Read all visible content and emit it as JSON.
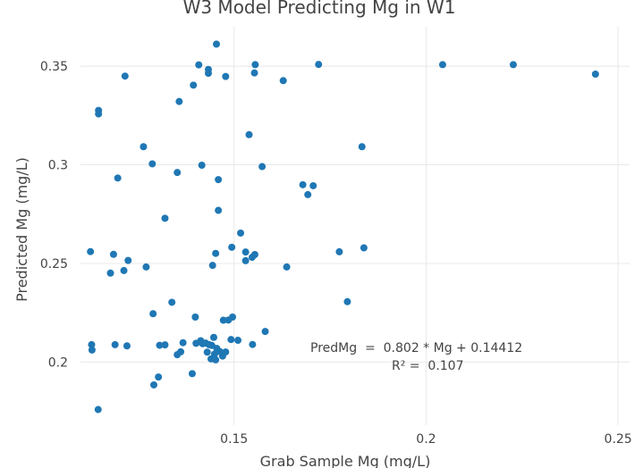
{
  "chart_data": {
    "type": "scatter",
    "title": "W3 Model Predicting Mg in W1",
    "xlabel": "Grab Sample Mg (mg/L)",
    "ylabel": "Predicted Mg (mg/L)",
    "xlim": [
      0.11,
      0.253
    ],
    "ylim": [
      0.168,
      0.37
    ],
    "xticks": [
      0.15,
      0.2,
      0.25
    ],
    "xtick_labels": [
      "0.15",
      "0.2",
      "0.25"
    ],
    "yticks": [
      0.2,
      0.25,
      0.3,
      0.35
    ],
    "ytick_labels": [
      "0.2",
      "0.25",
      "0.3",
      "0.35"
    ],
    "grid": true,
    "legend": "none",
    "colors": {
      "marker": "#1f77b4",
      "grid": "#e8e8e8",
      "text": "#444444"
    },
    "annotation": {
      "equation": "PredMg  =  0.802 * Mg + 0.14412",
      "r2": "R² =  0.107"
    },
    "points": [
      [
        0.1454,
        0.3612
      ],
      [
        0.1408,
        0.3507
      ],
      [
        0.1555,
        0.3508
      ],
      [
        0.172,
        0.3509
      ],
      [
        0.2043,
        0.3508
      ],
      [
        0.2227,
        0.3508
      ],
      [
        0.2441,
        0.346
      ],
      [
        0.1433,
        0.3484
      ],
      [
        0.1433,
        0.3464
      ],
      [
        0.1553,
        0.3466
      ],
      [
        0.1478,
        0.3448
      ],
      [
        0.1628,
        0.3427
      ],
      [
        0.1216,
        0.345
      ],
      [
        0.1394,
        0.3404
      ],
      [
        0.1357,
        0.3321
      ],
      [
        0.1147,
        0.3276
      ],
      [
        0.1147,
        0.3258
      ],
      [
        0.1539,
        0.3153
      ],
      [
        0.1264,
        0.3092
      ],
      [
        0.1833,
        0.3092
      ],
      [
        0.1287,
        0.3005
      ],
      [
        0.1416,
        0.2998
      ],
      [
        0.1573,
        0.2991
      ],
      [
        0.1352,
        0.2961
      ],
      [
        0.1197,
        0.2933
      ],
      [
        0.1459,
        0.2925
      ],
      [
        0.1679,
        0.2899
      ],
      [
        0.1706,
        0.2894
      ],
      [
        0.1692,
        0.2849
      ],
      [
        0.1459,
        0.2769
      ],
      [
        0.132,
        0.2729
      ],
      [
        0.1517,
        0.2654
      ],
      [
        0.1494,
        0.2582
      ],
      [
        0.1838,
        0.2579
      ],
      [
        0.1126,
        0.256
      ],
      [
        0.153,
        0.2558
      ],
      [
        0.1774,
        0.2559
      ],
      [
        0.1452,
        0.2551
      ],
      [
        0.1554,
        0.2545
      ],
      [
        0.1186,
        0.2546
      ],
      [
        0.1547,
        0.2531
      ],
      [
        0.153,
        0.2514
      ],
      [
        0.1224,
        0.2515
      ],
      [
        0.1444,
        0.249
      ],
      [
        0.1271,
        0.2482
      ],
      [
        0.1637,
        0.2482
      ],
      [
        0.1213,
        0.2464
      ],
      [
        0.1178,
        0.2451
      ],
      [
        0.1338,
        0.2303
      ],
      [
        0.1795,
        0.2306
      ],
      [
        0.1289,
        0.2245
      ],
      [
        0.1399,
        0.2228
      ],
      [
        0.1496,
        0.2228
      ],
      [
        0.1485,
        0.2213
      ],
      [
        0.1472,
        0.2212
      ],
      [
        0.1581,
        0.2155
      ],
      [
        0.1447,
        0.2125
      ],
      [
        0.1413,
        0.2108
      ],
      [
        0.151,
        0.211
      ],
      [
        0.1492,
        0.2114
      ],
      [
        0.1442,
        0.2084
      ],
      [
        0.1367,
        0.2098
      ],
      [
        0.1129,
        0.2088
      ],
      [
        0.119,
        0.2088
      ],
      [
        0.1221,
        0.2082
      ],
      [
        0.1306,
        0.2085
      ],
      [
        0.132,
        0.2087
      ],
      [
        0.1548,
        0.2089
      ],
      [
        0.1418,
        0.2093
      ],
      [
        0.1401,
        0.2095
      ],
      [
        0.1426,
        0.2096
      ],
      [
        0.1435,
        0.2088
      ],
      [
        0.1455,
        0.2069
      ],
      [
        0.113,
        0.2061
      ],
      [
        0.1361,
        0.2052
      ],
      [
        0.1463,
        0.2053
      ],
      [
        0.143,
        0.205
      ],
      [
        0.1449,
        0.204
      ],
      [
        0.1352,
        0.2037
      ],
      [
        0.147,
        0.203
      ],
      [
        0.144,
        0.2016
      ],
      [
        0.1452,
        0.2011
      ],
      [
        0.1478,
        0.2051
      ],
      [
        0.1391,
        0.1941
      ],
      [
        0.1303,
        0.1924
      ],
      [
        0.1291,
        0.1884
      ],
      [
        0.1146,
        0.1759
      ]
    ]
  }
}
